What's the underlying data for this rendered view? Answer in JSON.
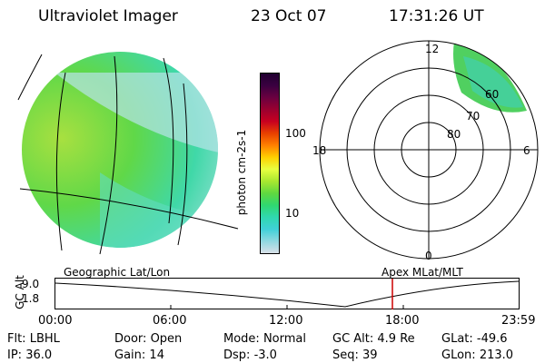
{
  "header": {
    "instrument": "Ultraviolet Imager",
    "date": "23 Oct 07",
    "time": "17:31:26 UT"
  },
  "colorbar": {
    "unit_label": "photon cm-2s-1",
    "tick_labels": [
      "100",
      "10"
    ],
    "colors": [
      "#200030",
      "#3a0040",
      "#6a0040",
      "#9a0030",
      "#c80020",
      "#e84000",
      "#ff8000",
      "#ffd000",
      "#e8ff40",
      "#a8e830",
      "#60d840",
      "#30d870",
      "#30d8b0",
      "#40d0d8",
      "#90d8e0",
      "#d8e0e8"
    ]
  },
  "polar_plot": {
    "mlt_labels": [
      "12",
      "18",
      "6",
      "0"
    ],
    "lat_labels": [
      "60",
      "70",
      "80"
    ]
  },
  "altitude_strip": {
    "axis_label": "GC Alt",
    "y_ticks": [
      "9.0",
      "1.8"
    ],
    "left_title": "Geographic Lat/Lon",
    "right_title": "Apex MLat/MLT",
    "time_ticks": [
      "00:00",
      "06:00",
      "12:00",
      "18:00",
      "23:59"
    ],
    "marker_color": "#cc0000"
  },
  "status": {
    "row1": [
      {
        "label": "Flt:",
        "value": "LBHL"
      },
      {
        "label": "Door:",
        "value": "Open"
      },
      {
        "label": "Mode:",
        "value": "Normal"
      },
      {
        "label": "GC Alt:",
        "value": "4.9 Re"
      },
      {
        "label": "GLat:",
        "value": "-49.6"
      }
    ],
    "row2": [
      {
        "label": "IP:",
        "value": "36.0"
      },
      {
        "label": "Gain:",
        "value": "14"
      },
      {
        "label": "Dsp:",
        "value": "-3.0"
      },
      {
        "label": "Seq:",
        "value": "39"
      },
      {
        "label": "GLon:",
        "value": "213.0"
      }
    ]
  }
}
